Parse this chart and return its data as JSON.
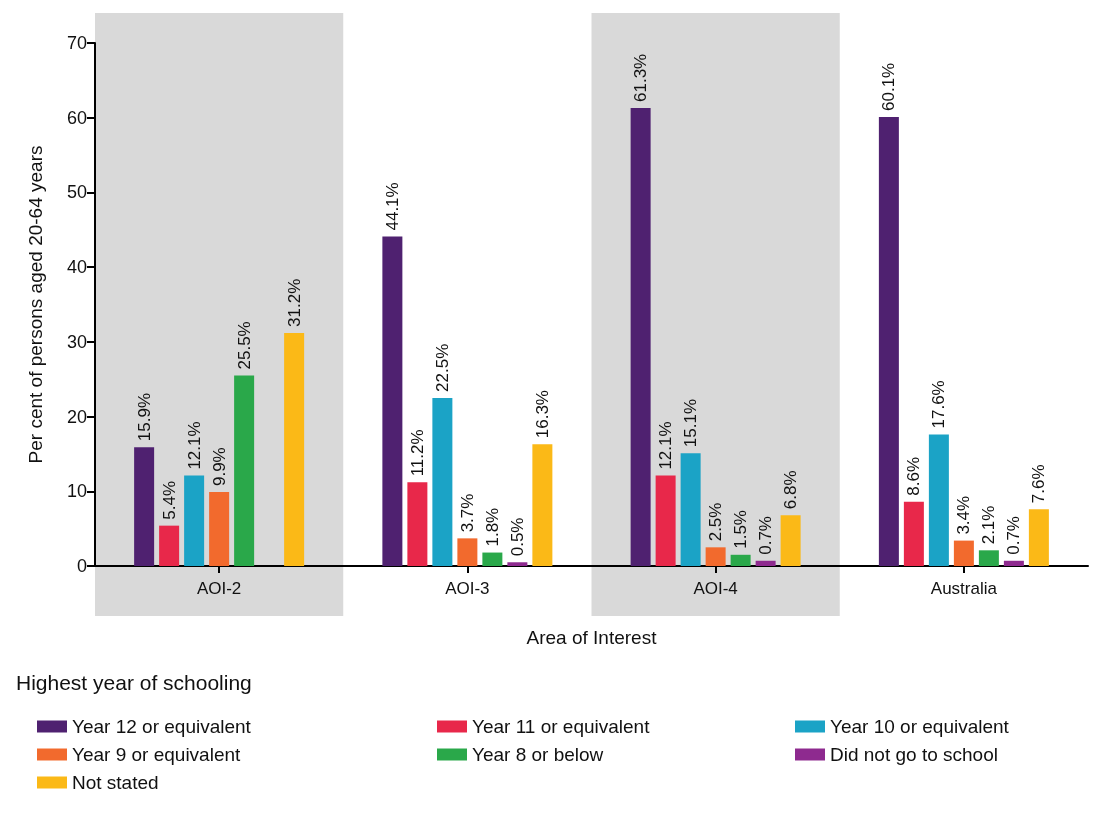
{
  "chart_data": {
    "type": "bar",
    "xlabel": "Area of Interest",
    "ylabel": "Per cent of persons aged 20-64 years",
    "legend_title": "Highest year of schooling",
    "categories": [
      "AOI-2",
      "AOI-3",
      "AOI-4",
      "Australia"
    ],
    "series": [
      {
        "name": "Year 12 or equivalent",
        "color": "#4f2170",
        "values": [
          15.9,
          44.1,
          61.3,
          60.1
        ],
        "value_labels": [
          "15.9%",
          "44.1%",
          "61.3%",
          "60.1%"
        ]
      },
      {
        "name": "Year 11 or equivalent",
        "color": "#e8284a",
        "values": [
          5.4,
          11.2,
          12.1,
          8.6
        ],
        "value_labels": [
          "5.4%",
          "11.2%",
          "12.1%",
          "8.6%"
        ]
      },
      {
        "name": "Year 10 or equivalent",
        "color": "#1ba3c6",
        "values": [
          12.1,
          22.5,
          15.1,
          17.6
        ],
        "value_labels": [
          "12.1%",
          "22.5%",
          "15.1%",
          "17.6%"
        ]
      },
      {
        "name": "Year 9 or equivalent",
        "color": "#f26a2d",
        "values": [
          9.9,
          3.7,
          2.5,
          3.4
        ],
        "value_labels": [
          "9.9%",
          "3.7%",
          "2.5%",
          "3.4%"
        ]
      },
      {
        "name": "Year 8 or below",
        "color": "#2aa84a",
        "values": [
          25.5,
          1.8,
          1.5,
          2.1
        ],
        "value_labels": [
          "25.5%",
          "1.8%",
          "1.5%",
          "2.1%"
        ]
      },
      {
        "name": "Did not go to school",
        "color": "#8e2a8f",
        "values": [
          null,
          0.5,
          0.7,
          0.7
        ],
        "value_labels": [
          null,
          "0.5%",
          "0.7%",
          "0.7%"
        ]
      },
      {
        "name": "Not stated",
        "color": "#fbb917",
        "values": [
          31.2,
          16.3,
          6.8,
          7.6
        ],
        "value_labels": [
          "31.2%",
          "16.3%",
          "6.8%",
          "7.6%"
        ]
      }
    ],
    "ylim": [
      0,
      70
    ],
    "yticks": [
      0,
      10,
      20,
      30,
      40,
      50,
      60,
      70
    ],
    "bands": [
      {
        "axis": "x",
        "from": "AOI-2",
        "to": "AOI-2",
        "color": "#d9d9d9"
      },
      {
        "axis": "x",
        "from": "AOI-4",
        "to": "AOI-4",
        "color": "#d9d9d9"
      }
    ],
    "grid": false,
    "legend": "bottom"
  }
}
